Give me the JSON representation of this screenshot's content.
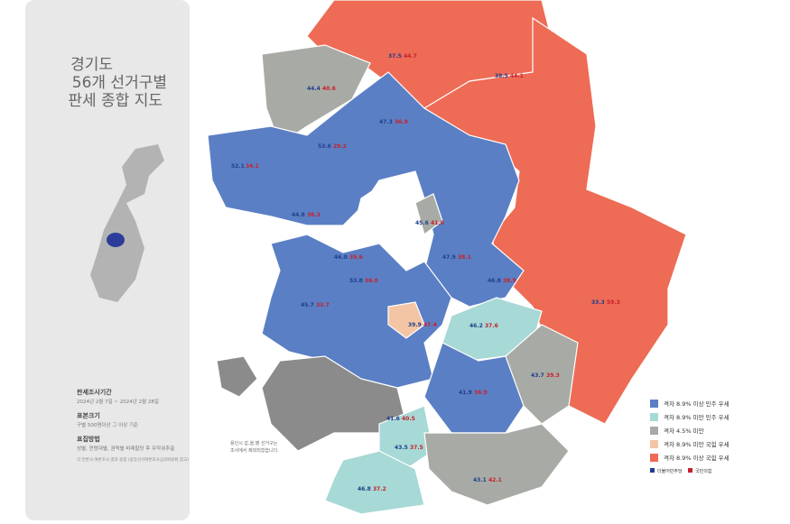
{
  "header": {
    "title_lines": [
      "경기도",
      "56개 선거구별",
      "판세 종합 지도"
    ]
  },
  "info": [
    {
      "heading": "판세조사기간",
      "text": "2024년 2월 7일 ~ 2024년 2월 28일"
    },
    {
      "heading": "표본크기",
      "text": "구별 500명이상 그 이상 기준"
    },
    {
      "heading": "표집방법",
      "text": "성별, 연령대별, 권역별 비례할당 후 무작위추출"
    }
  ],
  "source": "각 언론사 여론조사 결과 종합 (중앙선거여론조사심의위원회 참고)",
  "note": [
    "용인시 갑,을,병 선거구는",
    "조사에서 제외되었습니다."
  ],
  "legend": {
    "items": [
      "격차 8.9% 이상 민주 우세",
      "격차 8.9% 미만 민주 우세",
      "격차 4.5% 미만",
      "격차 8.9% 미만 국힘 우세",
      "격차 8.9% 이상 국힘 우세"
    ],
    "parties": [
      "더불어민주당",
      "국민의힘"
    ]
  },
  "districts": [
    {
      "dem": "44.4",
      "ppp": "40.6"
    },
    {
      "dem": "37.5",
      "ppp": "44.7"
    },
    {
      "dem": "38.5",
      "ppp": "44.1"
    },
    {
      "dem": "47.3",
      "ppp": "36.9"
    },
    {
      "dem": "52.1",
      "ppp": "34.1"
    },
    {
      "dem": "46.0",
      "ppp": "35.6"
    },
    {
      "dem": "53.8",
      "ppp": "36.0"
    },
    {
      "dem": "45.6",
      "ppp": "41.0"
    },
    {
      "dem": "47.9",
      "ppp": "38.1"
    },
    {
      "dem": "46.2",
      "ppp": "37.6"
    },
    {
      "dem": "43.7",
      "ppp": "39.3"
    },
    {
      "dem": "41.9",
      "ppp": "36.9"
    },
    {
      "dem": "39.9",
      "ppp": "47.4"
    },
    {
      "dem": "43.1",
      "ppp": "42.1"
    },
    {
      "dem": "46.8",
      "ppp": "37.2"
    },
    {
      "dem": "43.5",
      "ppp": "37.5"
    },
    {
      "dem": "33.3",
      "ppp": "59.3"
    },
    {
      "dem": "46.8",
      "ppp": "38.9"
    },
    {
      "dem": "45.7",
      "ppp": "33.7"
    },
    {
      "dem": "44.8",
      "ppp": "36.3"
    },
    {
      "dem": "53.6",
      "ppp": "29.2"
    },
    {
      "dem": "41.6",
      "ppp": "40.5"
    }
  ]
}
